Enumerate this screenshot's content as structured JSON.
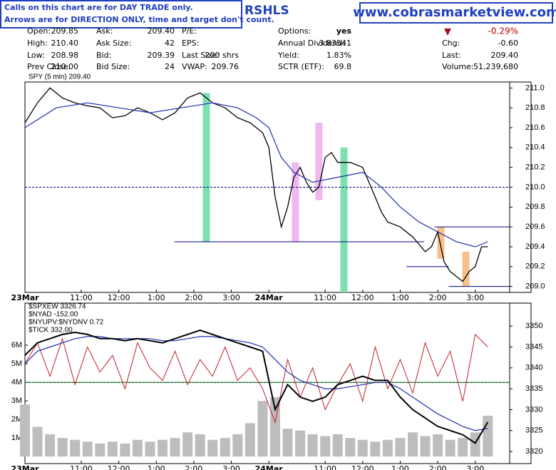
{
  "header": {
    "notice": [
      "Calls on this chart are for DAY TRADE only.",
      "Arrows are for DIRECTION ONLY, time and target don't count."
    ],
    "symbol": "RSHLS",
    "site": "www.cobrasmarketview.com",
    "quote": [
      [
        [
          "Open:",
          "209.85"
        ],
        [
          "Ask:",
          "209.40"
        ],
        [
          "P/E:",
          ""
        ],
        [
          "Options:",
          "yes"
        ],
        [
          "",
          "-0.29%"
        ]
      ],
      [
        [
          "High:",
          "210.40"
        ],
        [
          "Ask Size:",
          "42"
        ],
        [
          "EPS:",
          ""
        ],
        [
          "Annual Dividend:",
          "3.83541"
        ],
        [
          "Chg:",
          "-0.60"
        ]
      ],
      [
        [
          "Low:",
          "208.98"
        ],
        [
          "Bid:",
          "209.39"
        ],
        [
          "Last Size:",
          "200 shrs"
        ],
        [
          "Yield:",
          "1.83%"
        ],
        [
          "Last:",
          "209.40"
        ]
      ],
      [
        [
          "Prev Close:",
          "210.00"
        ],
        [
          "Bid Size:",
          "24"
        ],
        [
          "VWAP:",
          "209.76"
        ],
        [
          "SCTR (ETF):",
          "69.8"
        ],
        [
          "Volume:",
          "51,239,680"
        ]
      ]
    ]
  },
  "chart_data": [
    {
      "type": "line",
      "legend": [
        "SPY (5 min) 209.40"
      ],
      "xlim": [
        0,
        155
      ],
      "ylim": [
        208.94,
        211.06
      ],
      "xticks": [
        {
          "value": 0,
          "label": "23Mar"
        },
        {
          "value": 18,
          "label": "11:00"
        },
        {
          "value": 30,
          "label": "12:00"
        },
        {
          "value": 42,
          "label": "1:00"
        },
        {
          "value": 54,
          "label": "2:00"
        },
        {
          "value": 66,
          "label": "3:00"
        },
        {
          "value": 78,
          "label": "24Mar"
        },
        {
          "value": 96,
          "label": "11:00"
        },
        {
          "value": 108,
          "label": "12:00"
        },
        {
          "value": 120,
          "label": "1:00"
        },
        {
          "value": 132,
          "label": "2:00"
        },
        {
          "value": 144,
          "label": "3:00"
        }
      ],
      "yticks": [
        {
          "value": 209,
          "label": "209.0"
        },
        209.2,
        209.4,
        209.6,
        209.8,
        {
          "value": 210,
          "label": "210.0"
        },
        210.2,
        210.4,
        210.6,
        210.8,
        {
          "value": 211,
          "label": "211.0"
        }
      ],
      "highlights": [
        {
          "x": 58,
          "y": [
            209.45,
            210.95
          ],
          "color": "#7ee0b0"
        },
        {
          "x": 102,
          "y": [
            208.94,
            210.4
          ],
          "color": "#7ee0b0"
        },
        {
          "x": 86.5,
          "y": [
            209.45,
            210.25
          ],
          "color": "#f0b8f0"
        },
        {
          "x": 94,
          "y": [
            209.87,
            210.65
          ],
          "color": "#f0b8f0"
        },
        {
          "x": 133,
          "y": [
            209.28,
            209.6
          ],
          "color": "#f7c08a"
        },
        {
          "x": 141,
          "y": [
            209.0,
            209.35
          ],
          "color": "#f7c08a"
        }
      ],
      "levels": [
        {
          "y": 210.0,
          "x": [
            0,
            155
          ],
          "color": "#00008b",
          "dashed": true
        },
        {
          "y": 209.45,
          "x": [
            47.8,
            127.6
          ],
          "color": "#00008b",
          "dashed": false
        },
        {
          "y": 209.6,
          "x": [
            131,
            155
          ],
          "color": "#00008b",
          "dashed": false
        },
        {
          "y": 209.2,
          "x": [
            122,
            135.5
          ],
          "color": "#00008b",
          "dashed": false
        },
        {
          "y": 209.0,
          "x": [
            135.5,
            155
          ],
          "color": "#00008b",
          "dashed": false
        }
      ],
      "series": [
        {
          "color": "#000",
          "width": 1.3,
          "x": [
            0,
            4,
            8,
            12,
            16,
            20,
            24,
            28,
            32,
            36,
            40,
            44,
            48,
            52,
            56,
            60,
            64,
            68,
            72,
            76,
            78,
            80,
            82,
            84,
            86,
            88,
            90,
            92,
            94,
            96,
            98,
            100,
            104,
            108,
            112,
            114,
            116,
            120,
            124,
            128,
            130,
            132,
            134,
            136,
            138,
            140,
            142,
            144,
            146,
            148
          ],
          "values": [
            210.65,
            210.85,
            211.0,
            210.9,
            210.85,
            210.82,
            210.8,
            210.7,
            210.72,
            210.8,
            210.75,
            210.68,
            210.75,
            210.9,
            210.95,
            210.85,
            210.8,
            210.7,
            210.65,
            210.55,
            210.4,
            209.9,
            209.6,
            209.8,
            210.1,
            210.2,
            210.05,
            209.95,
            210.0,
            210.3,
            210.35,
            210.25,
            210.25,
            210.2,
            209.9,
            209.75,
            209.65,
            209.6,
            209.5,
            209.35,
            209.4,
            209.55,
            209.25,
            209.15,
            209.1,
            209.05,
            209.15,
            209.2,
            209.4,
            209.4
          ]
        },
        {
          "color": "#1f2fb0",
          "width": 1.2,
          "x": [
            0,
            10,
            20,
            30,
            40,
            50,
            60,
            68,
            74,
            78,
            82,
            86,
            92,
            100,
            108,
            114,
            120,
            126,
            132,
            138,
            144,
            148
          ],
          "values": [
            210.6,
            210.8,
            210.85,
            210.8,
            210.75,
            210.8,
            210.85,
            210.8,
            210.7,
            210.6,
            210.3,
            210.15,
            210.05,
            210.1,
            210.15,
            210.0,
            209.8,
            209.65,
            209.55,
            209.45,
            209.4,
            209.45
          ]
        }
      ]
    },
    {
      "type": "line",
      "legend": [
        "$SPXEW 3326.74",
        "$NYAD -152.00",
        "$NYUPV:$NYDNV 0.72",
        "$TICK 332.00"
      ],
      "xlim": [
        0,
        155
      ],
      "ylim": [
        3317.1,
        3355.5
      ],
      "y2lim": [
        -380000,
        8270000
      ],
      "xticks": [
        {
          "value": 0,
          "label": "23Mar"
        },
        {
          "value": 18,
          "label": "11:00"
        },
        {
          "value": 30,
          "label": "12:00"
        },
        {
          "value": 42,
          "label": "1:00"
        },
        {
          "value": 54,
          "label": "2:00"
        },
        {
          "value": 66,
          "label": "3:00"
        },
        {
          "value": 78,
          "label": "24Mar"
        },
        {
          "value": 96,
          "label": "11:00"
        },
        {
          "value": 108,
          "label": "12:00"
        },
        {
          "value": 120,
          "label": "1:00"
        },
        {
          "value": 132,
          "label": "2:00"
        },
        {
          "value": 144,
          "label": "3:00"
        }
      ],
      "yticks": [
        3320,
        3325,
        3330,
        3335,
        3340,
        3345,
        3350
      ],
      "y2ticks": [
        {
          "value": 1000000,
          "label": "1M"
        },
        {
          "value": 2000000,
          "label": "2M"
        },
        {
          "value": 3000000,
          "label": "3M"
        },
        {
          "value": 4000000,
          "label": "4M"
        },
        {
          "value": 5000000,
          "label": "5M"
        },
        {
          "value": 6000000,
          "label": "6M"
        }
      ],
      "levels": [
        {
          "y": 3336.5,
          "x": [
            0,
            155
          ],
          "color": "#00008b",
          "dashed": true
        },
        {
          "y": 4000000,
          "axis": "y2",
          "x": [
            0,
            155
          ],
          "color": "#1a7a1a",
          "dashed": false
        }
      ],
      "x": [
        0,
        4,
        8,
        12,
        16,
        20,
        24,
        28,
        32,
        36,
        40,
        44,
        48,
        52,
        56,
        60,
        64,
        68,
        72,
        76,
        80,
        84,
        88,
        92,
        96,
        100,
        104,
        108,
        112,
        116,
        120,
        124,
        128,
        132,
        136,
        140,
        144,
        148
      ],
      "series": [
        {
          "type": "bar",
          "axis": "y2",
          "color": "#bdbdbd",
          "values": [
            2800000,
            1600000,
            1200000,
            1000000,
            900000,
            800000,
            700000,
            800000,
            700000,
            900000,
            800000,
            900000,
            1000000,
            1300000,
            1200000,
            900000,
            1000000,
            1200000,
            1800000,
            3000000,
            3200000,
            1500000,
            1400000,
            1200000,
            1100000,
            1200000,
            1000000,
            900000,
            800000,
            900000,
            1000000,
            1300000,
            1100000,
            1200000,
            900000,
            1000000,
            1300000,
            2200000
          ]
        },
        {
          "color": "#c0202a",
          "width": 1,
          "values": [
            3341,
            3346,
            3338,
            3347,
            3336,
            3345,
            3339,
            3343,
            3335,
            3346,
            3340,
            3337,
            3344,
            3336,
            3342,
            3338,
            3345,
            3337,
            3340,
            3335,
            3327,
            3342,
            3333,
            3340,
            3330,
            3336,
            3341,
            3332,
            3345,
            3335,
            3342,
            3334,
            3346,
            3338,
            3344,
            3332,
            3348,
            3345
          ]
        },
        {
          "color": "#1f2fb0",
          "width": 1.2,
          "values": [
            3341,
            3344,
            3345,
            3346,
            3347,
            3347.5,
            3347.5,
            3347,
            3347,
            3347,
            3347,
            3346.5,
            3346.5,
            3347,
            3347.5,
            3347.5,
            3347,
            3346.5,
            3346,
            3345,
            3342,
            3339,
            3337,
            3336,
            3335,
            3335,
            3335.5,
            3336,
            3336.5,
            3336.5,
            3335,
            3333,
            3331,
            3329,
            3327.5,
            3326,
            3325,
            3325.5
          ]
        },
        {
          "color": "#000",
          "width": 2,
          "values": [
            3343,
            3346,
            3347,
            3348,
            3348.5,
            3348,
            3347,
            3347,
            3346.5,
            3347,
            3346.5,
            3346,
            3347,
            3348,
            3349,
            3348,
            3347,
            3346,
            3345,
            3344,
            3330,
            3336,
            3333,
            3332,
            3333,
            3336,
            3337,
            3338,
            3337,
            3337,
            3333,
            3330,
            3328,
            3326,
            3325,
            3324,
            3322,
            3327
          ]
        }
      ]
    }
  ]
}
